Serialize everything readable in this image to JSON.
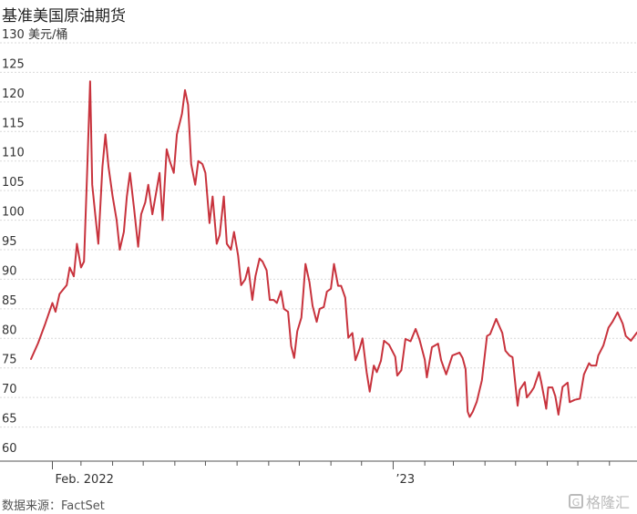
{
  "title": "基准美国原油期货",
  "source": "数据来源：FactSet",
  "watermark": "格隆汇",
  "chart_data": {
    "type": "line",
    "title": "基准美国原油期货",
    "ylabel": "美元/桶",
    "y_unit_label": "130 美元/桶",
    "ylim": [
      60,
      130
    ],
    "yticks": [
      60,
      65,
      70,
      75,
      80,
      85,
      90,
      95,
      100,
      105,
      110,
      115,
      120,
      125,
      130
    ],
    "grid": true,
    "line_color": "#c8333d",
    "x_tick_labels": [
      {
        "date": "2022-02-01",
        "label": "Feb. 2022"
      },
      {
        "date": "2023-01-01",
        "label": "’23"
      }
    ],
    "x_minor_ticks": [
      "2022-03-01",
      "2022-04-01",
      "2022-05-01",
      "2022-06-01",
      "2022-07-01",
      "2022-08-01",
      "2022-09-01",
      "2022-10-01",
      "2022-11-01",
      "2022-12-01",
      "2023-02-01",
      "2023-03-01",
      "2023-04-01",
      "2023-05-01",
      "2023-06-01",
      "2023-07-01",
      "2023-08-01"
    ],
    "x_range": [
      "2022-01-11",
      "2023-08-28"
    ],
    "series": [
      {
        "name": "",
        "points": [
          [
            "2022-01-11",
            76.5
          ],
          [
            "2022-01-18",
            79.2
          ],
          [
            "2022-01-25",
            82.5
          ],
          [
            "2022-02-01",
            86.0
          ],
          [
            "2022-02-04",
            84.5
          ],
          [
            "2022-02-08",
            87.5
          ],
          [
            "2022-02-15",
            89.0
          ],
          [
            "2022-02-18",
            92.0
          ],
          [
            "2022-02-22",
            90.5
          ],
          [
            "2022-02-25",
            96.0
          ],
          [
            "2022-03-01",
            92.0
          ],
          [
            "2022-03-04",
            93.0
          ],
          [
            "2022-03-07",
            108.0
          ],
          [
            "2022-03-10",
            123.5
          ],
          [
            "2022-03-12",
            106.0
          ],
          [
            "2022-03-15",
            101.0
          ],
          [
            "2022-03-18",
            96.0
          ],
          [
            "2022-03-22",
            109.0
          ],
          [
            "2022-03-25",
            114.5
          ],
          [
            "2022-03-28",
            109.0
          ],
          [
            "2022-04-01",
            104.0
          ],
          [
            "2022-04-05",
            100.0
          ],
          [
            "2022-04-08",
            95.0
          ],
          [
            "2022-04-12",
            98.0
          ],
          [
            "2022-04-15",
            104.0
          ],
          [
            "2022-04-18",
            108.0
          ],
          [
            "2022-04-22",
            102.0
          ],
          [
            "2022-04-26",
            95.5
          ],
          [
            "2022-04-29",
            101.0
          ],
          [
            "2022-05-03",
            103.0
          ],
          [
            "2022-05-06",
            106.0
          ],
          [
            "2022-05-10",
            101.0
          ],
          [
            "2022-05-13",
            104.0
          ],
          [
            "2022-05-17",
            108.0
          ],
          [
            "2022-05-20",
            100.0
          ],
          [
            "2022-05-24",
            112.0
          ],
          [
            "2022-05-27",
            110.0
          ],
          [
            "2022-05-31",
            108.0
          ],
          [
            "2022-06-03",
            114.5
          ],
          [
            "2022-06-08",
            118.0
          ],
          [
            "2022-06-11",
            122.0
          ],
          [
            "2022-06-14",
            119.5
          ],
          [
            "2022-06-17",
            109.5
          ],
          [
            "2022-06-21",
            106.0
          ],
          [
            "2022-06-24",
            110.0
          ],
          [
            "2022-06-28",
            109.5
          ],
          [
            "2022-07-01",
            108.0
          ],
          [
            "2022-07-05",
            99.5
          ],
          [
            "2022-07-08",
            104.0
          ],
          [
            "2022-07-12",
            96.0
          ],
          [
            "2022-07-15",
            97.5
          ],
          [
            "2022-07-19",
            104.0
          ],
          [
            "2022-07-22",
            96.0
          ],
          [
            "2022-07-26",
            95.0
          ],
          [
            "2022-07-29",
            98.0
          ],
          [
            "2022-08-02",
            94.0
          ],
          [
            "2022-08-05",
            89.0
          ],
          [
            "2022-08-09",
            90.0
          ],
          [
            "2022-08-12",
            92.0
          ],
          [
            "2022-08-16",
            86.5
          ],
          [
            "2022-08-19",
            90.5
          ],
          [
            "2022-08-23",
            93.5
          ],
          [
            "2022-08-26",
            93.0
          ],
          [
            "2022-08-30",
            91.5
          ],
          [
            "2022-09-02",
            86.5
          ],
          [
            "2022-09-06",
            86.5
          ],
          [
            "2022-09-09",
            86.0
          ],
          [
            "2022-09-13",
            88.0
          ],
          [
            "2022-09-16",
            85.0
          ],
          [
            "2022-09-20",
            84.5
          ],
          [
            "2022-09-23",
            78.7
          ],
          [
            "2022-09-26",
            76.7
          ],
          [
            "2022-09-29",
            81.2
          ],
          [
            "2022-10-03",
            83.5
          ],
          [
            "2022-10-05",
            87.8
          ],
          [
            "2022-10-07",
            92.6
          ],
          [
            "2022-10-11",
            89.5
          ],
          [
            "2022-10-14",
            85.5
          ],
          [
            "2022-10-18",
            82.8
          ],
          [
            "2022-10-21",
            85.0
          ],
          [
            "2022-10-25",
            85.3
          ],
          [
            "2022-10-28",
            87.9
          ],
          [
            "2022-11-01",
            88.4
          ],
          [
            "2022-11-04",
            92.6
          ],
          [
            "2022-11-08",
            88.9
          ],
          [
            "2022-11-11",
            88.9
          ],
          [
            "2022-11-15",
            86.9
          ],
          [
            "2022-11-18",
            80.1
          ],
          [
            "2022-11-22",
            80.9
          ],
          [
            "2022-11-25",
            76.3
          ],
          [
            "2022-11-29",
            78.2
          ],
          [
            "2022-12-02",
            80.0
          ],
          [
            "2022-12-06",
            74.3
          ],
          [
            "2022-12-09",
            71.0
          ],
          [
            "2022-12-13",
            75.4
          ],
          [
            "2022-12-16",
            74.3
          ],
          [
            "2022-12-20",
            76.2
          ],
          [
            "2022-12-23",
            79.6
          ],
          [
            "2022-12-28",
            78.9
          ],
          [
            "2023-01-03",
            76.9
          ],
          [
            "2023-01-05",
            73.7
          ],
          [
            "2023-01-09",
            74.6
          ],
          [
            "2023-01-13",
            79.9
          ],
          [
            "2023-01-18",
            79.5
          ],
          [
            "2023-01-23",
            81.6
          ],
          [
            "2023-01-27",
            79.7
          ],
          [
            "2023-02-01",
            76.4
          ],
          [
            "2023-02-03",
            73.4
          ],
          [
            "2023-02-08",
            78.5
          ],
          [
            "2023-02-14",
            79.1
          ],
          [
            "2023-02-17",
            76.3
          ],
          [
            "2023-02-22",
            73.9
          ],
          [
            "2023-02-28",
            77.1
          ],
          [
            "2023-03-07",
            77.6
          ],
          [
            "2023-03-10",
            76.7
          ],
          [
            "2023-03-13",
            74.8
          ],
          [
            "2023-03-15",
            67.6
          ],
          [
            "2023-03-17",
            66.7
          ],
          [
            "2023-03-20",
            67.6
          ],
          [
            "2023-03-24",
            69.3
          ],
          [
            "2023-03-29",
            72.9
          ],
          [
            "2023-04-03",
            80.4
          ],
          [
            "2023-04-06",
            80.7
          ],
          [
            "2023-04-12",
            83.3
          ],
          [
            "2023-04-14",
            82.5
          ],
          [
            "2023-04-18",
            80.9
          ],
          [
            "2023-04-21",
            77.9
          ],
          [
            "2023-04-25",
            77.1
          ],
          [
            "2023-04-28",
            76.8
          ],
          [
            "2023-05-03",
            68.6
          ],
          [
            "2023-05-05",
            71.3
          ],
          [
            "2023-05-10",
            72.6
          ],
          [
            "2023-05-12",
            70.0
          ],
          [
            "2023-05-16",
            70.9
          ],
          [
            "2023-05-19",
            71.7
          ],
          [
            "2023-05-24",
            74.3
          ],
          [
            "2023-05-26",
            72.7
          ],
          [
            "2023-05-31",
            68.1
          ],
          [
            "2023-06-02",
            71.7
          ],
          [
            "2023-06-06",
            71.7
          ],
          [
            "2023-06-09",
            70.2
          ],
          [
            "2023-06-12",
            67.1
          ],
          [
            "2023-06-16",
            71.8
          ],
          [
            "2023-06-21",
            72.5
          ],
          [
            "2023-06-23",
            69.2
          ],
          [
            "2023-06-28",
            69.6
          ],
          [
            "2023-07-03",
            69.8
          ],
          [
            "2023-07-07",
            73.9
          ],
          [
            "2023-07-12",
            75.8
          ],
          [
            "2023-07-14",
            75.4
          ],
          [
            "2023-07-19",
            75.4
          ],
          [
            "2023-07-21",
            77.1
          ],
          [
            "2023-07-26",
            78.8
          ],
          [
            "2023-07-31",
            81.8
          ],
          [
            "2023-08-04",
            82.8
          ],
          [
            "2023-08-09",
            84.4
          ],
          [
            "2023-08-14",
            82.5
          ],
          [
            "2023-08-17",
            80.4
          ],
          [
            "2023-08-22",
            79.6
          ],
          [
            "2023-08-28",
            81.0
          ]
        ]
      }
    ]
  }
}
